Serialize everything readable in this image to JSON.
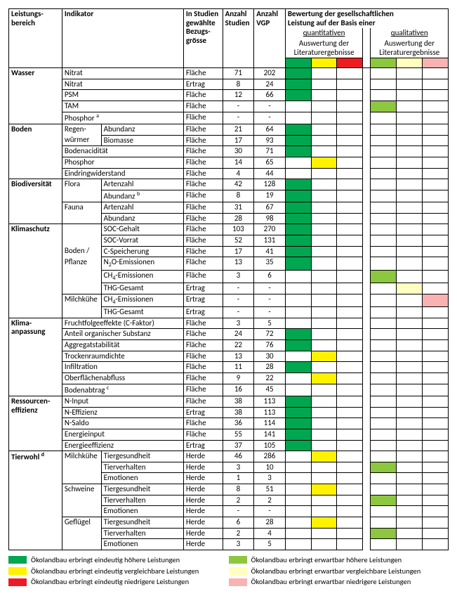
{
  "colors": {
    "quant_high": "#00a650",
    "quant_equal": "#fff200",
    "quant_low": "#ed1c24",
    "qual_high": "#8dc63f",
    "qual_equal": "#ffffbf",
    "qual_low": "#f9b2b2"
  },
  "header": {
    "bereich": "Leistungs-\nbereich",
    "indikator": "Indikator",
    "bezug": "In Studien\ngewählte\nBezugs-\ngrösse",
    "studien": "Anzahl\nStudien",
    "vgp": "Anzahl\nVGP",
    "eval_title": "Bewertung der gesellschaftlichen\nLeistung auf der Basis einer",
    "quant": "quantitativen",
    "qual": "qualitativen",
    "sub": "Auswertung der\nLiteraturergebnisse"
  },
  "legend": {
    "q_high": "Ökolandbau erbringt eindeutig höhere Leistungen",
    "q_equal": "Ökolandbau erbringt eindeutig vergleichbare Leistungen",
    "q_low": "Ökolandbau erbringt eindeutig niedrigere Leistungen",
    "ql_high": "Ökolandbau erbringt erwartbar höhere Leistungen",
    "ql_equal": "Ökolandbau erbringt erwartbar vergleichbare Leistungen",
    "ql_low": "Ökolandbau erbringt erwartbar niedrigere Leistungen"
  },
  "sections": [
    {
      "name": "Wasser",
      "rows": [
        {
          "ind": [
            "Nitrat"
          ],
          "bez": "Fläche",
          "st": "71",
          "vgp": "202",
          "quant": "high"
        },
        {
          "ind": [
            "Nitrat"
          ],
          "bez": "Ertrag",
          "st": "8",
          "vgp": "24",
          "quant": "high"
        },
        {
          "ind": [
            "PSM"
          ],
          "bez": "Fläche",
          "st": "12",
          "vgp": "66",
          "quant": "high"
        },
        {
          "ind": [
            "TAM"
          ],
          "bez": "Fläche",
          "st": "-",
          "vgp": "-",
          "qual": "high"
        },
        {
          "ind": [
            "Phosphor",
            "a"
          ],
          "bez": "Fläche",
          "st": "-",
          "vgp": "-"
        }
      ]
    },
    {
      "name": "Boden",
      "rows": [
        {
          "ind": [
            "Regen-",
            "Abundanz"
          ],
          "rowspan_sub": true,
          "bez": "Fläche",
          "st": "21",
          "vgp": "64",
          "quant": "high"
        },
        {
          "ind": [
            "würmer",
            "Biomasse"
          ],
          "cont": true,
          "bez": "Fläche",
          "st": "17",
          "vgp": "93",
          "quant": "high"
        },
        {
          "ind": [
            "Bodenacidität"
          ],
          "bez": "Fläche",
          "st": "30",
          "vgp": "71",
          "quant": "high"
        },
        {
          "ind": [
            "Phosphor"
          ],
          "bez": "Fläche",
          "st": "14",
          "vgp": "65",
          "quant": "equal"
        },
        {
          "ind": [
            "Eindringwiderstand"
          ],
          "bez": "Fläche",
          "st": "4",
          "vgp": "44"
        }
      ]
    },
    {
      "name": "Biodiversität",
      "rows": [
        {
          "ind": [
            "Flora",
            "Artenzahl"
          ],
          "rowspan_sub": true,
          "bez": "Fläche",
          "st": "42",
          "vgp": "128",
          "quant": "high"
        },
        {
          "ind": [
            "",
            "Abundanz",
            "b"
          ],
          "cont": true,
          "bez": "Fläche",
          "st": "8",
          "vgp": "19",
          "quant": "high"
        },
        {
          "ind": [
            "Fauna",
            "Artenzahl"
          ],
          "rowspan_sub": true,
          "bez": "Fläche",
          "st": "31",
          "vgp": "67",
          "quant": "high"
        },
        {
          "ind": [
            "",
            "Abundanz"
          ],
          "cont": true,
          "bez": "Fläche",
          "st": "28",
          "vgp": "98",
          "quant": "high"
        }
      ]
    },
    {
      "name": "Klimaschutz",
      "rows": [
        {
          "ind": [
            "",
            "SOC-Gehalt"
          ],
          "group": "Boden /\nPflanze",
          "gstart": true,
          "bez": "Fläche",
          "st": "103",
          "vgp": "270",
          "quant": "high"
        },
        {
          "ind": [
            "",
            "SOC-Vorrat"
          ],
          "gmid": true,
          "bez": "Fläche",
          "st": "52",
          "vgp": "131",
          "quant": "high"
        },
        {
          "ind": [
            "",
            "C-Speicherung"
          ],
          "gmid": true,
          "glabel": "Boden /",
          "bez": "Fläche",
          "st": "17",
          "vgp": "41",
          "quant": "high"
        },
        {
          "ind": [
            "",
            "N₂O-Emissionen"
          ],
          "gmid": true,
          "glabel": "Pflanze",
          "bez": "Fläche",
          "st": "13",
          "vgp": "35",
          "quant": "high"
        },
        {
          "ind": [
            "",
            "CH₄-Emissionen"
          ],
          "gmid": true,
          "bez": "Fläche",
          "st": "3",
          "vgp": "6",
          "qual": "high"
        },
        {
          "ind": [
            "",
            "THG-Gesamt"
          ],
          "gend": true,
          "bez": "Ertrag",
          "st": "-",
          "vgp": "-",
          "qual": "equal"
        },
        {
          "ind": [
            "Milchkühe",
            "CH₄-Emissionen"
          ],
          "rowspan_sub": true,
          "bez": "Ertrag",
          "st": "-",
          "vgp": "-",
          "qual": "low"
        },
        {
          "ind": [
            "",
            "THG-Gesamt"
          ],
          "cont": true,
          "bez": "Ertrag",
          "st": "-",
          "vgp": "-"
        }
      ]
    },
    {
      "name": "Klima-\nanpassung",
      "rows": [
        {
          "ind": [
            "Fruchtfolgeeffekte (C-Faktor)"
          ],
          "bez": "Fläche",
          "st": "3",
          "vgp": "5"
        },
        {
          "ind": [
            "Anteil organischer Substanz"
          ],
          "bez": "Fläche",
          "st": "24",
          "vgp": "72",
          "quant": "high"
        },
        {
          "ind": [
            "Aggregatstabilität"
          ],
          "bez": "Fläche",
          "st": "22",
          "vgp": "76",
          "quant": "high"
        },
        {
          "ind": [
            "Trockenraumdichte"
          ],
          "bez": "Fläche",
          "st": "13",
          "vgp": "30",
          "quant": "equal"
        },
        {
          "ind": [
            "Infiltration"
          ],
          "bez": "Fläche",
          "st": "11",
          "vgp": "28",
          "quant": "high"
        },
        {
          "ind": [
            "Oberflächenabfluss"
          ],
          "bez": "Fläche",
          "st": "9",
          "vgp": "22",
          "quant": "equal"
        },
        {
          "ind": [
            "Bodenabtrag",
            "c"
          ],
          "bez": "Fläche",
          "st": "16",
          "vgp": "45"
        }
      ]
    },
    {
      "name": "Ressourcen-\neffizienz",
      "rows": [
        {
          "ind": [
            "N-Input"
          ],
          "bez": "Fläche",
          "st": "38",
          "vgp": "113",
          "quant": "high"
        },
        {
          "ind": [
            "N-Effizienz"
          ],
          "bez": "Ertrag",
          "st": "38",
          "vgp": "113",
          "quant": "high"
        },
        {
          "ind": [
            "N-Saldo"
          ],
          "bez": "Fläche",
          "st": "36",
          "vgp": "114",
          "quant": "high"
        },
        {
          "ind": [
            "Energieinput"
          ],
          "bez": "Fläche",
          "st": "55",
          "vgp": "141",
          "quant": "high"
        },
        {
          "ind": [
            "Energieeffizienz"
          ],
          "bez": "Ertrag",
          "st": "37",
          "vgp": "105",
          "quant": "high"
        }
      ]
    },
    {
      "name": "Tierwohl",
      "name_sup": "d",
      "rows": [
        {
          "ind": [
            "Milchkühe",
            "Tiergesundheit"
          ],
          "rowspan_sub": true,
          "g3": true,
          "bez": "Herde",
          "st": "46",
          "vgp": "286",
          "quant": "equal"
        },
        {
          "ind": [
            "",
            "Tierverhalten"
          ],
          "gmid": true,
          "bez": "Herde",
          "st": "3",
          "vgp": "10",
          "qual": "high"
        },
        {
          "ind": [
            "",
            "Emotionen"
          ],
          "gend": true,
          "bez": "Herde",
          "st": "1",
          "vgp": "3"
        },
        {
          "ind": [
            "Schweine",
            "Tiergesundheit"
          ],
          "rowspan_sub": true,
          "g3": true,
          "bez": "Herde",
          "st": "8",
          "vgp": "51",
          "quant": "equal"
        },
        {
          "ind": [
            "",
            "Tierverhalten"
          ],
          "gmid": true,
          "bez": "Herde",
          "st": "2",
          "vgp": "2",
          "qual": "high"
        },
        {
          "ind": [
            "",
            "Emotionen"
          ],
          "gend": true,
          "bez": "Herde",
          "st": "-",
          "vgp": "-"
        },
        {
          "ind": [
            "Geflügel",
            "Tiergesundheit"
          ],
          "rowspan_sub": true,
          "g3": true,
          "bez": "Herde",
          "st": "6",
          "vgp": "28",
          "quant": "equal"
        },
        {
          "ind": [
            "",
            "Tierverhalten"
          ],
          "gmid": true,
          "bez": "Herde",
          "st": "2",
          "vgp": "4",
          "qual": "high"
        },
        {
          "ind": [
            "",
            "Emotionen"
          ],
          "gend": true,
          "bez": "Herde",
          "st": "3",
          "vgp": "5"
        }
      ]
    }
  ]
}
